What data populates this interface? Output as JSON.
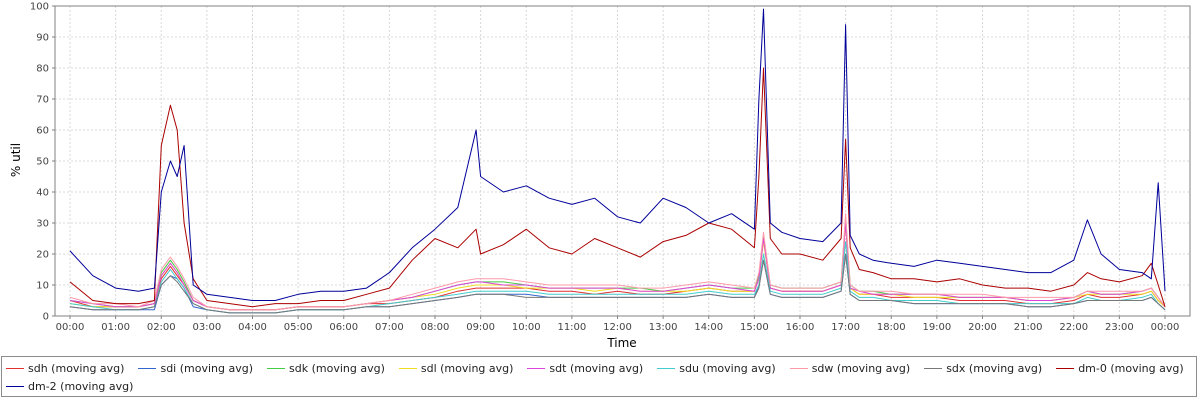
{
  "chart_data": {
    "type": "line",
    "title": "",
    "xlabel": "Time",
    "ylabel": "% util",
    "ylim": [
      0,
      100
    ],
    "yticks": [
      "0",
      "10",
      "20",
      "30",
      "40",
      "50",
      "60",
      "70",
      "80",
      "90",
      "100"
    ],
    "xticks": [
      "00:00",
      "01:00",
      "02:00",
      "03:00",
      "04:00",
      "05:00",
      "06:00",
      "07:00",
      "08:00",
      "09:00",
      "10:00",
      "11:00",
      "12:00",
      "13:00",
      "14:00",
      "15:00",
      "16:00",
      "17:00",
      "18:00",
      "19:00",
      "20:00",
      "21:00",
      "22:00",
      "23:00",
      "00:00"
    ],
    "xlim_hours": [
      0,
      24
    ],
    "grid": true,
    "legend_position": "bottom",
    "x_hours": [
      0,
      0.5,
      1,
      1.5,
      1.85,
      2,
      2.2,
      2.35,
      2.5,
      2.7,
      3,
      3.5,
      4,
      4.5,
      5,
      5.5,
      6,
      6.5,
      7,
      7.5,
      8,
      8.5,
      8.9,
      9,
      9.5,
      10,
      10.5,
      11,
      11.5,
      12,
      12.5,
      13,
      13.5,
      14,
      14.5,
      15,
      15.1,
      15.2,
      15.35,
      15.6,
      16,
      16.5,
      16.9,
      17,
      17.1,
      17.3,
      17.6,
      18,
      18.5,
      19,
      19.5,
      20,
      20.5,
      21,
      21.5,
      22,
      22.3,
      22.6,
      23,
      23.5,
      23.7,
      23.85,
      24
    ],
    "series": [
      {
        "name": "sdh (moving avg)",
        "color": "#e03030",
        "values": [
          5,
          3,
          3,
          3,
          4,
          12,
          16,
          13,
          10,
          5,
          3,
          2,
          2,
          2,
          3,
          3,
          3,
          4,
          4,
          5,
          6,
          8,
          9,
          9,
          9,
          9,
          8,
          8,
          7,
          8,
          7,
          7,
          8,
          9,
          8,
          8,
          12,
          25,
          9,
          8,
          8,
          8,
          10,
          30,
          9,
          7,
          7,
          6,
          6,
          6,
          5,
          5,
          5,
          4,
          4,
          5,
          7,
          6,
          6,
          7,
          8,
          5,
          3
        ]
      },
      {
        "name": "sdi (moving avg)",
        "color": "#3366cc",
        "values": [
          3,
          2,
          2,
          2,
          2,
          10,
          13,
          12,
          9,
          3,
          2,
          1,
          1,
          1,
          2,
          2,
          2,
          3,
          3,
          4,
          5,
          6,
          7,
          7,
          7,
          7,
          6,
          6,
          6,
          6,
          6,
          6,
          6,
          7,
          6,
          6,
          10,
          18,
          7,
          6,
          6,
          6,
          8,
          20,
          7,
          5,
          5,
          5,
          4,
          4,
          4,
          4,
          4,
          3,
          3,
          4,
          5,
          5,
          5,
          5,
          6,
          4,
          2
        ]
      },
      {
        "name": "sdk (moving avg)",
        "color": "#44cc44",
        "values": [
          5,
          4,
          3,
          3,
          4,
          14,
          18,
          15,
          11,
          5,
          3,
          2,
          2,
          2,
          3,
          3,
          3,
          4,
          5,
          6,
          8,
          10,
          11,
          11,
          11,
          10,
          9,
          9,
          9,
          9,
          9,
          8,
          9,
          10,
          9,
          9,
          13,
          26,
          10,
          9,
          9,
          9,
          11,
          32,
          10,
          8,
          8,
          7,
          7,
          7,
          6,
          6,
          6,
          5,
          5,
          6,
          8,
          7,
          7,
          8,
          9,
          6,
          3
        ]
      },
      {
        "name": "sdl (moving avg)",
        "color": "#eedd22",
        "values": [
          4,
          3,
          3,
          3,
          4,
          13,
          17,
          14,
          10,
          5,
          3,
          2,
          2,
          2,
          3,
          3,
          3,
          4,
          5,
          6,
          7,
          9,
          10,
          10,
          10,
          9,
          9,
          9,
          8,
          9,
          8,
          8,
          8,
          9,
          8,
          8,
          12,
          24,
          9,
          8,
          8,
          8,
          10,
          30,
          9,
          7,
          7,
          7,
          6,
          6,
          6,
          6,
          6,
          5,
          5,
          6,
          7,
          7,
          7,
          7,
          8,
          5,
          3
        ]
      },
      {
        "name": "sdt (moving avg)",
        "color": "#dd44dd",
        "values": [
          5,
          4,
          3,
          3,
          4,
          13,
          17,
          14,
          10,
          5,
          3,
          2,
          2,
          2,
          3,
          3,
          3,
          4,
          5,
          6,
          8,
          10,
          11,
          11,
          10,
          10,
          9,
          9,
          9,
          9,
          8,
          8,
          9,
          10,
          9,
          8,
          12,
          25,
          9,
          8,
          8,
          8,
          10,
          30,
          9,
          8,
          7,
          7,
          7,
          7,
          6,
          6,
          6,
          5,
          5,
          6,
          8,
          7,
          7,
          8,
          9,
          6,
          3
        ]
      },
      {
        "name": "sdu (moving avg)",
        "color": "#44cccc",
        "values": [
          4,
          3,
          2,
          2,
          3,
          11,
          15,
          12,
          9,
          4,
          2,
          1,
          1,
          1,
          2,
          2,
          2,
          3,
          4,
          5,
          6,
          7,
          8,
          8,
          8,
          8,
          7,
          7,
          7,
          7,
          7,
          7,
          7,
          8,
          7,
          7,
          10,
          20,
          8,
          7,
          7,
          7,
          9,
          24,
          8,
          6,
          6,
          5,
          5,
          5,
          4,
          4,
          4,
          4,
          4,
          4,
          6,
          5,
          5,
          6,
          7,
          4,
          2
        ]
      },
      {
        "name": "sdw (moving avg)",
        "color": "#ff99aa",
        "values": [
          6,
          4,
          4,
          3,
          5,
          15,
          19,
          16,
          12,
          6,
          3,
          2,
          2,
          2,
          3,
          3,
          3,
          4,
          5,
          7,
          9,
          11,
          12,
          12,
          12,
          11,
          10,
          10,
          10,
          10,
          9,
          9,
          10,
          11,
          10,
          9,
          14,
          27,
          10,
          9,
          9,
          9,
          11,
          33,
          10,
          8,
          8,
          8,
          7,
          7,
          7,
          7,
          6,
          6,
          6,
          6,
          8,
          8,
          8,
          8,
          9,
          6,
          3
        ]
      },
      {
        "name": "sdx (moving avg)",
        "color": "#777777",
        "values": [
          3,
          2,
          2,
          2,
          3,
          10,
          13,
          11,
          8,
          4,
          2,
          1,
          1,
          1,
          2,
          2,
          2,
          3,
          3,
          4,
          5,
          6,
          7,
          7,
          7,
          6,
          6,
          6,
          6,
          6,
          6,
          6,
          6,
          7,
          6,
          6,
          9,
          18,
          7,
          6,
          6,
          6,
          8,
          20,
          7,
          5,
          5,
          5,
          4,
          4,
          4,
          4,
          4,
          3,
          3,
          4,
          5,
          5,
          5,
          5,
          6,
          4,
          2
        ]
      },
      {
        "name": "dm-0 (moving avg)",
        "color": "#aa0000",
        "values": [
          11,
          5,
          4,
          4,
          5,
          55,
          68,
          60,
          30,
          12,
          5,
          4,
          3,
          4,
          4,
          5,
          5,
          7,
          9,
          18,
          25,
          22,
          28,
          20,
          23,
          28,
          22,
          20,
          25,
          22,
          19,
          24,
          26,
          30,
          28,
          22,
          45,
          80,
          25,
          20,
          20,
          18,
          25,
          57,
          22,
          15,
          14,
          12,
          12,
          11,
          12,
          10,
          9,
          9,
          8,
          10,
          14,
          12,
          11,
          13,
          17,
          10,
          3
        ]
      },
      {
        "name": "dm-2 (moving avg)",
        "color": "#000099",
        "values": [
          21,
          13,
          9,
          8,
          9,
          40,
          50,
          45,
          55,
          10,
          7,
          6,
          5,
          5,
          7,
          8,
          8,
          9,
          14,
          22,
          28,
          35,
          60,
          45,
          40,
          42,
          38,
          36,
          38,
          32,
          30,
          38,
          35,
          30,
          33,
          28,
          70,
          99,
          30,
          27,
          25,
          24,
          30,
          94,
          26,
          20,
          18,
          17,
          16,
          18,
          17,
          16,
          15,
          14,
          14,
          18,
          31,
          20,
          15,
          14,
          12,
          43,
          8
        ]
      }
    ]
  },
  "legend": {
    "items": [
      {
        "label": "sdh (moving avg)",
        "color": "#e03030"
      },
      {
        "label": "sdi (moving avg)",
        "color": "#3366cc"
      },
      {
        "label": "sdk (moving avg)",
        "color": "#44cc44"
      },
      {
        "label": "sdl (moving avg)",
        "color": "#eedd22"
      },
      {
        "label": "sdt (moving avg)",
        "color": "#dd44dd"
      },
      {
        "label": "sdu (moving avg)",
        "color": "#44cccc"
      },
      {
        "label": "sdw (moving avg)",
        "color": "#ff99aa"
      },
      {
        "label": "sdx (moving avg)",
        "color": "#777777"
      },
      {
        "label": "dm-0 (moving avg)",
        "color": "#aa0000"
      },
      {
        "label": "dm-2 (moving avg)",
        "color": "#000099"
      }
    ]
  }
}
